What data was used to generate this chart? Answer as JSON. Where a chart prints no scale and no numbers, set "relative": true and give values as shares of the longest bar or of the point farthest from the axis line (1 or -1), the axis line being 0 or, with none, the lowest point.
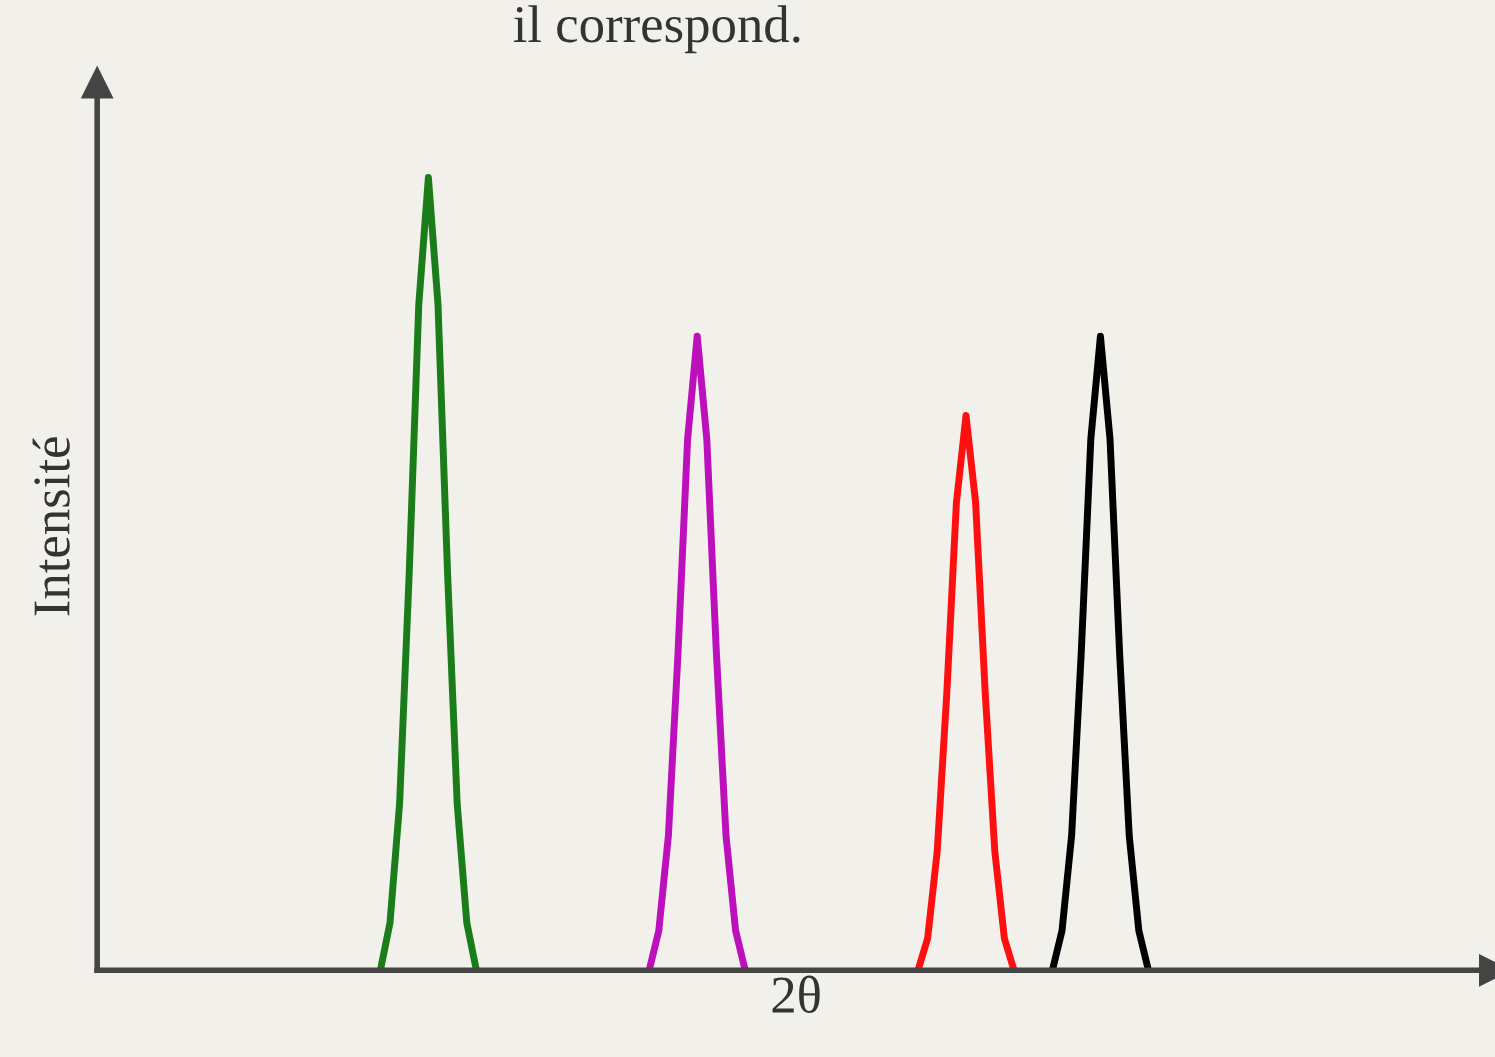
{
  "chart_data": {
    "type": "line",
    "title": "il correspond.",
    "xlabel": "2θ",
    "ylabel": "Intensité",
    "relative": true,
    "categories": [
      null,
      null,
      null,
      null,
      null,
      null,
      null,
      null,
      null,
      null,
      null,
      null,
      null,
      null,
      null,
      null,
      null,
      null,
      null,
      null,
      null,
      null,
      null,
      null,
      null,
      null,
      null,
      null,
      null,
      null,
      null,
      null,
      null,
      null,
      null,
      null,
      null,
      null,
      null,
      null,
      null,
      null,
      null,
      null,
      null,
      null,
      null,
      null,
      null,
      null,
      null,
      null,
      null,
      null,
      null,
      null,
      null,
      null,
      null,
      null,
      null,
      null,
      null,
      null,
      null,
      null,
      null,
      null,
      null,
      null,
      null,
      null,
      null,
      null,
      null,
      null,
      null,
      null,
      null,
      null,
      null,
      null,
      null,
      null,
      null,
      null,
      null,
      null,
      null,
      null,
      null,
      null,
      null,
      null,
      null,
      null,
      null,
      null,
      null,
      null,
      null,
      null,
      null,
      null,
      null,
      null,
      null,
      null,
      null,
      null,
      null,
      null,
      null,
      null,
      null,
      null,
      null,
      null,
      null,
      null,
      null,
      null,
      null,
      null,
      null,
      null,
      null,
      null,
      null,
      null,
      null,
      null,
      null,
      null,
      null,
      null,
      null,
      null,
      null,
      null
    ],
    "series": [
      {
        "color": "#1a7d1a",
        "values": [
          null,
          null,
          null,
          null,
          null,
          null,
          null,
          null,
          null,
          null,
          null,
          null,
          null,
          null,
          null,
          null,
          null,
          null,
          null,
          null,
          null,
          null,
          null,
          null,
          null,
          null,
          null,
          null,
          null,
          0,
          0.06,
          0.21,
          0.5,
          0.84,
          1,
          0.84,
          0.5,
          0.21,
          0.06,
          0,
          null,
          null,
          null,
          null,
          null,
          null,
          null,
          null,
          null,
          null,
          null,
          null,
          null,
          null,
          null,
          null,
          null,
          null,
          null,
          null,
          null,
          null,
          null,
          null,
          null,
          null,
          null,
          null,
          null,
          null,
          null,
          null,
          null,
          null,
          null,
          null,
          null,
          null,
          null,
          null,
          null,
          null,
          null,
          null,
          null,
          null,
          null,
          null,
          null,
          null,
          null,
          null,
          null,
          null,
          null,
          null,
          null,
          null,
          null,
          null,
          null,
          null,
          null,
          null,
          null,
          null,
          null,
          null,
          null,
          null,
          null,
          null,
          null,
          null,
          null,
          null,
          null,
          null,
          null,
          null,
          null,
          null,
          null,
          null,
          null,
          null,
          null,
          null,
          null,
          null,
          null,
          null,
          null,
          null,
          null,
          null,
          null,
          null,
          null,
          null
        ]
      },
      {
        "color": "#bb10bb",
        "values": [
          null,
          null,
          null,
          null,
          null,
          null,
          null,
          null,
          null,
          null,
          null,
          null,
          null,
          null,
          null,
          null,
          null,
          null,
          null,
          null,
          null,
          null,
          null,
          null,
          null,
          null,
          null,
          null,
          null,
          null,
          null,
          null,
          null,
          null,
          null,
          null,
          null,
          null,
          null,
          null,
          null,
          null,
          null,
          null,
          null,
          null,
          null,
          null,
          null,
          null,
          null,
          null,
          null,
          null,
          null,
          null,
          null,
          0,
          0.05,
          0.17,
          0.4,
          0.67,
          0.8,
          0.67,
          0.4,
          0.17,
          0.05,
          0,
          null,
          null,
          null,
          null,
          null,
          null,
          null,
          null,
          null,
          null,
          null,
          null,
          null,
          null,
          null,
          null,
          null,
          null,
          null,
          null,
          null,
          null,
          null,
          null,
          null,
          null,
          null,
          null,
          null,
          null,
          null,
          null,
          null,
          null,
          null,
          null,
          null,
          null,
          null,
          null,
          null,
          null,
          null,
          null,
          null,
          null,
          null,
          null,
          null,
          null,
          null,
          null,
          null,
          null,
          null,
          null,
          null,
          null,
          null,
          null,
          null,
          null,
          null,
          null,
          null,
          null,
          null,
          null,
          null,
          null,
          null,
          null
        ]
      },
      {
        "color": "#ff1010",
        "values": [
          null,
          null,
          null,
          null,
          null,
          null,
          null,
          null,
          null,
          null,
          null,
          null,
          null,
          null,
          null,
          null,
          null,
          null,
          null,
          null,
          null,
          null,
          null,
          null,
          null,
          null,
          null,
          null,
          null,
          null,
          null,
          null,
          null,
          null,
          null,
          null,
          null,
          null,
          null,
          null,
          null,
          null,
          null,
          null,
          null,
          null,
          null,
          null,
          null,
          null,
          null,
          null,
          null,
          null,
          null,
          null,
          null,
          null,
          null,
          null,
          null,
          null,
          null,
          null,
          null,
          null,
          null,
          null,
          null,
          null,
          null,
          null,
          null,
          null,
          null,
          null,
          null,
          null,
          null,
          null,
          null,
          null,
          null,
          null,
          null,
          0,
          0.04,
          0.15,
          0.35,
          0.59,
          0.7,
          0.59,
          0.35,
          0.15,
          0.04,
          0,
          null,
          null,
          null,
          null,
          null,
          null,
          null,
          null,
          null,
          null,
          null,
          null,
          null,
          null,
          null,
          null,
          null,
          null,
          null,
          null,
          null,
          null,
          null,
          null,
          null,
          null,
          null,
          null,
          null,
          null,
          null,
          null,
          null,
          null,
          null,
          null,
          null,
          null,
          null,
          null,
          null,
          null,
          null,
          null
        ]
      },
      {
        "color": "#000000",
        "values": [
          null,
          null,
          null,
          null,
          null,
          null,
          null,
          null,
          null,
          null,
          null,
          null,
          null,
          null,
          null,
          null,
          null,
          null,
          null,
          null,
          null,
          null,
          null,
          null,
          null,
          null,
          null,
          null,
          null,
          null,
          null,
          null,
          null,
          null,
          null,
          null,
          null,
          null,
          null,
          null,
          null,
          null,
          null,
          null,
          null,
          null,
          null,
          null,
          null,
          null,
          null,
          null,
          null,
          null,
          null,
          null,
          null,
          null,
          null,
          null,
          null,
          null,
          null,
          null,
          null,
          null,
          null,
          null,
          null,
          null,
          null,
          null,
          null,
          null,
          null,
          null,
          null,
          null,
          null,
          null,
          null,
          null,
          null,
          null,
          null,
          null,
          null,
          null,
          null,
          null,
          null,
          null,
          null,
          null,
          null,
          null,
          null,
          null,
          null,
          0,
          0.05,
          0.17,
          0.4,
          0.67,
          0.8,
          0.67,
          0.4,
          0.17,
          0.05,
          0,
          null,
          null,
          null,
          null,
          null,
          null,
          null,
          null,
          null,
          null,
          null,
          null,
          null,
          null,
          null,
          null,
          null,
          null,
          null,
          null,
          null,
          null,
          null,
          null,
          null,
          null,
          null,
          null,
          null,
          null
        ]
      }
    ]
  }
}
